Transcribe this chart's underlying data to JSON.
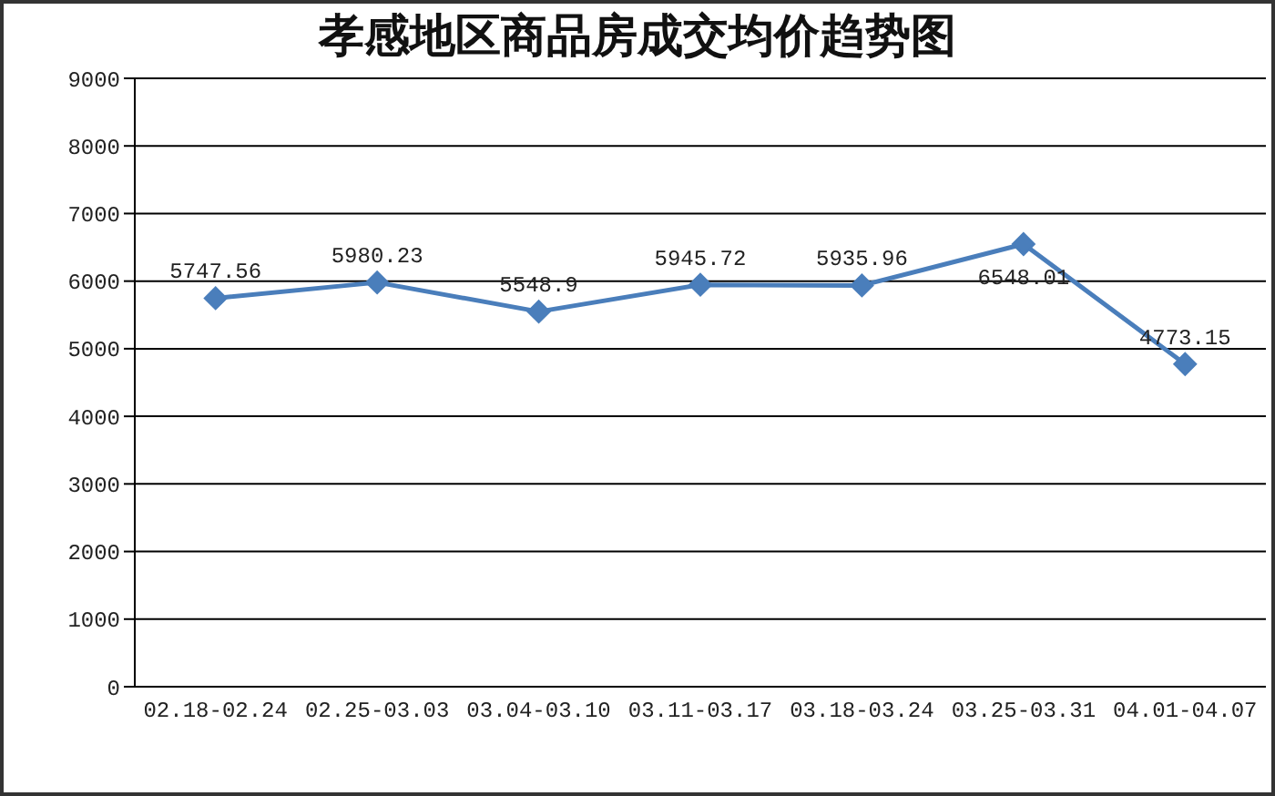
{
  "chart_data": {
    "type": "line",
    "title": "孝感地区商品房成交均价趋势图",
    "categories": [
      "02.18-02.24",
      "02.25-03.03",
      "03.04-03.10",
      "03.11-03.17",
      "03.18-03.24",
      "03.25-03.31",
      "04.01-04.07"
    ],
    "series": [
      {
        "color": "#4a7ebb",
        "values": [
          5747.56,
          5980.23,
          5548.9,
          5945.72,
          5935.96,
          6548.01,
          4773.15
        ]
      }
    ],
    "ylim": [
      0,
      9000
    ],
    "yticks": [
      0,
      1000,
      2000,
      3000,
      4000,
      5000,
      6000,
      7000,
      8000,
      9000
    ],
    "grid": "y",
    "marker": "diamond",
    "line_style": "solid",
    "data_labels": true
  }
}
